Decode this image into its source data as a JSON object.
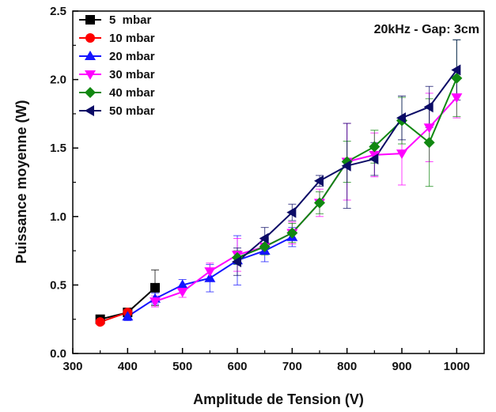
{
  "chart_data": {
    "type": "line",
    "title": "",
    "annotation": "20kHz - Gap: 3cm",
    "xlabel": "Amplitude de Tension (V)",
    "ylabel": "Puissance moyenne (W)",
    "xlim": [
      300,
      1050
    ],
    "ylim": [
      0.0,
      2.5
    ],
    "xticks": [
      "300",
      "400",
      "500",
      "600",
      "700",
      "800",
      "900",
      "1000"
    ],
    "yticks": [
      "0.0",
      "0.5",
      "1.0",
      "1.5",
      "2.0",
      "2.5"
    ],
    "grid": false,
    "legend_position": "top-left",
    "series": [
      {
        "name": "5  mbar",
        "color": "#000000",
        "marker": "square",
        "x": [
          350,
          400,
          450
        ],
        "y": [
          0.25,
          0.3,
          0.48
        ],
        "err": [
          0.02,
          0.03,
          0.13
        ]
      },
      {
        "name": "10 mbar",
        "color": "#ff0000",
        "marker": "circle",
        "x": [
          350,
          400
        ],
        "y": [
          0.23,
          0.3
        ],
        "err": [
          0.02,
          0.02
        ]
      },
      {
        "name": "20 mbar",
        "color": "#1515ff",
        "marker": "triangle-up",
        "x": [
          400,
          450,
          500,
          550,
          600,
          650,
          700
        ],
        "y": [
          0.27,
          0.4,
          0.5,
          0.55,
          0.68,
          0.75,
          0.85
        ],
        "err": [
          0.03,
          0.04,
          0.04,
          0.1,
          0.18,
          0.08,
          0.07
        ]
      },
      {
        "name": "30 mbar",
        "color": "#ff00ff",
        "marker": "triangle-down",
        "x": [
          450,
          500,
          550,
          600,
          650,
          700,
          750,
          800,
          850,
          900,
          950,
          1000
        ],
        "y": [
          0.38,
          0.45,
          0.6,
          0.72,
          0.78,
          0.88,
          1.1,
          1.4,
          1.45,
          1.46,
          1.65,
          1.87
        ],
        "err": [
          0.04,
          0.04,
          0.06,
          0.12,
          0.05,
          0.08,
          0.1,
          0.28,
          0.16,
          0.23,
          0.25,
          0.15
        ]
      },
      {
        "name": "40 mbar",
        "color": "#118811",
        "marker": "diamond",
        "x": [
          600,
          650,
          700,
          750,
          800,
          850,
          900,
          950,
          1000
        ],
        "y": [
          0.7,
          0.78,
          0.88,
          1.1,
          1.4,
          1.51,
          1.7,
          1.54,
          2.01
        ],
        "err": [
          0.05,
          0.06,
          0.07,
          0.08,
          0.15,
          0.12,
          0.17,
          0.32,
          0.28
        ]
      },
      {
        "name": "50 mbar",
        "color": "#0b0b66",
        "marker": "triangle-left",
        "x": [
          600,
          650,
          700,
          750,
          800,
          850,
          900,
          950,
          1000
        ],
        "y": [
          0.67,
          0.84,
          1.03,
          1.26,
          1.37,
          1.42,
          1.72,
          1.8,
          2.07
        ],
        "err": [
          0.1,
          0.08,
          0.06,
          0.04,
          0.31,
          0.12,
          0.16,
          0.15,
          0.22
        ]
      }
    ]
  }
}
